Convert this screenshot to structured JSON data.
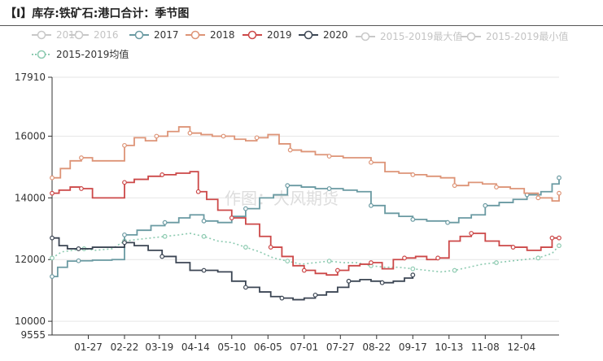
{
  "header": {
    "title": "【I】库存:铁矿石:港口合计：季节图"
  },
  "watermark": "作图：大风期货",
  "legend": [
    {
      "name": "2015",
      "color": "#c8c8c8",
      "muted": true,
      "style": "solid"
    },
    {
      "name": "2016",
      "color": "#c8c8c8",
      "muted": true,
      "style": "solid"
    },
    {
      "name": "2017",
      "color": "#6a9aa2",
      "muted": false,
      "style": "solid"
    },
    {
      "name": "2018",
      "color": "#dd9477",
      "muted": false,
      "style": "solid"
    },
    {
      "name": "2019",
      "color": "#cc4848",
      "muted": false,
      "style": "solid"
    },
    {
      "name": "2020",
      "color": "#3c4654",
      "muted": false,
      "style": "solid"
    },
    {
      "name": "2015-2019最大值",
      "color": "#c8c8c8",
      "muted": true,
      "style": "solid"
    },
    {
      "name": "2015-2019最小值",
      "color": "#c8c8c8",
      "muted": true,
      "style": "solid"
    },
    {
      "name": "2015-2019均值",
      "color": "#8ccab0",
      "muted": false,
      "style": "dotted"
    }
  ],
  "chart_data": {
    "type": "line",
    "title": "【I】库存:铁矿石:港口合计：季节图",
    "xlabel": "",
    "ylabel": "",
    "xlim": [
      1,
      365
    ],
    "ylim": [
      9555,
      17910
    ],
    "y_ticks": [
      9555,
      10000,
      12000,
      14000,
      16000,
      17910
    ],
    "x_ticks": [
      {
        "label": "01-27",
        "day": 27
      },
      {
        "label": "02-22",
        "day": 53
      },
      {
        "label": "03-19",
        "day": 78
      },
      {
        "label": "04-14",
        "day": 104
      },
      {
        "label": "05-10",
        "day": 130
      },
      {
        "label": "06-05",
        "day": 156
      },
      {
        "label": "07-01",
        "day": 182
      },
      {
        "label": "07-27",
        "day": 208
      },
      {
        "label": "08-22",
        "day": 234
      },
      {
        "label": "09-17",
        "day": 260
      },
      {
        "label": "10-13",
        "day": 286
      },
      {
        "label": "11-08",
        "day": 312
      },
      {
        "label": "12-04",
        "day": 338
      }
    ],
    "grid": true,
    "legend_position": "top",
    "series": [
      {
        "name": "2017",
        "color": "#6a9aa2",
        "style": "solid",
        "x": [
          1,
          5,
          12,
          20,
          30,
          44,
          53,
          62,
          72,
          82,
          92,
          100,
          110,
          120,
          130,
          140,
          150,
          160,
          170,
          180,
          190,
          200,
          210,
          220,
          230,
          240,
          250,
          260,
          270,
          278,
          285,
          293,
          302,
          312,
          322,
          332,
          342,
          352,
          360,
          365
        ],
        "y": [
          11450,
          11750,
          11950,
          11960,
          11980,
          12000,
          12800,
          12950,
          13100,
          13200,
          13350,
          13450,
          13250,
          13200,
          13400,
          13650,
          14000,
          14100,
          14400,
          14350,
          14300,
          14300,
          14250,
          14200,
          13750,
          13500,
          13400,
          13300,
          13250,
          13250,
          13200,
          13350,
          13450,
          13750,
          13850,
          13950,
          14100,
          14200,
          14450,
          14650
        ]
      },
      {
        "name": "2018",
        "color": "#dd9477",
        "style": "solid",
        "x": [
          1,
          7,
          14,
          22,
          30,
          44,
          53,
          60,
          68,
          76,
          84,
          92,
          100,
          108,
          116,
          124,
          132,
          140,
          148,
          156,
          164,
          172,
          180,
          190,
          200,
          210,
          220,
          230,
          240,
          250,
          260,
          270,
          280,
          290,
          300,
          310,
          320,
          330,
          340,
          350,
          360,
          365
        ],
        "y": [
          14650,
          14950,
          15200,
          15300,
          15200,
          15200,
          15700,
          15950,
          15850,
          16000,
          16150,
          16300,
          16100,
          16050,
          16000,
          16000,
          15900,
          15850,
          15950,
          16050,
          15750,
          15550,
          15500,
          15400,
          15350,
          15300,
          15300,
          15150,
          14850,
          14800,
          14750,
          14700,
          14650,
          14400,
          14500,
          14450,
          14350,
          14300,
          14150,
          14000,
          13900,
          14150
        ]
      },
      {
        "name": "2019",
        "color": "#cc4848",
        "style": "solid",
        "x": [
          1,
          6,
          14,
          22,
          30,
          44,
          53,
          60,
          70,
          80,
          90,
          100,
          106,
          112,
          120,
          130,
          140,
          150,
          158,
          166,
          174,
          182,
          190,
          198,
          206,
          214,
          222,
          230,
          238,
          246,
          254,
          262,
          270,
          278,
          286,
          294,
          302,
          312,
          322,
          332,
          342,
          352,
          360,
          365
        ],
        "y": [
          14150,
          14250,
          14350,
          14300,
          14000,
          14000,
          14500,
          14600,
          14700,
          14750,
          14800,
          14850,
          14200,
          13950,
          13600,
          13350,
          13150,
          12750,
          12400,
          12100,
          11800,
          11650,
          11550,
          11500,
          11650,
          11800,
          11850,
          11900,
          11700,
          12000,
          12050,
          12100,
          12000,
          12050,
          12600,
          12750,
          12850,
          12600,
          12450,
          12400,
          12300,
          12400,
          12700,
          12700
        ]
      },
      {
        "name": "2020",
        "color": "#3c4654",
        "style": "solid",
        "x": [
          1,
          6,
          12,
          20,
          30,
          44,
          53,
          60,
          70,
          80,
          90,
          100,
          110,
          120,
          130,
          140,
          150,
          158,
          166,
          174,
          182,
          190,
          198,
          206,
          214,
          222,
          230,
          238,
          246,
          254,
          260
        ],
        "y": [
          12700,
          12450,
          12350,
          12350,
          12400,
          12400,
          12550,
          12450,
          12300,
          12100,
          11900,
          11650,
          11650,
          11600,
          11300,
          11100,
          10950,
          10800,
          10750,
          10700,
          10750,
          10850,
          10950,
          11100,
          11300,
          11350,
          11300,
          11250,
          11300,
          11400,
          11500
        ]
      },
      {
        "name": "2015-2019均值",
        "color": "#8ccab0",
        "style": "dotted",
        "x": [
          1,
          8,
          16,
          24,
          32,
          44,
          53,
          62,
          72,
          82,
          92,
          100,
          110,
          120,
          130,
          140,
          150,
          160,
          170,
          180,
          190,
          200,
          210,
          220,
          230,
          240,
          250,
          260,
          270,
          280,
          290,
          300,
          310,
          320,
          330,
          340,
          350,
          360,
          365
        ],
        "y": [
          12050,
          12250,
          12300,
          12350,
          12300,
          12350,
          12600,
          12650,
          12700,
          12750,
          12800,
          12850,
          12750,
          12600,
          12550,
          12400,
          12250,
          12050,
          11950,
          11850,
          11900,
          11950,
          11900,
          11900,
          11800,
          11750,
          11750,
          11700,
          11650,
          11600,
          11650,
          11750,
          11850,
          11900,
          11950,
          12000,
          12050,
          12200,
          12450
        ]
      }
    ]
  }
}
